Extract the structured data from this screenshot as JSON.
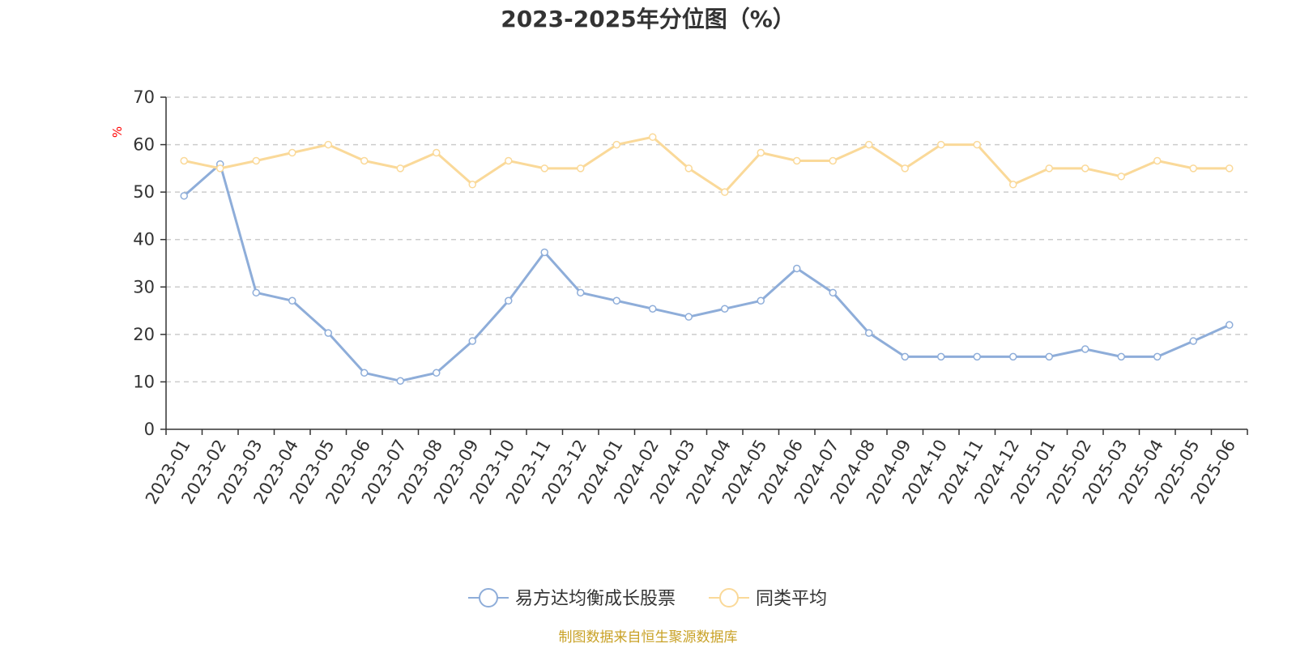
{
  "chart_data": {
    "type": "line",
    "title": "2023-2025年分位图（%）",
    "ylabel": "%",
    "xlabel": "",
    "ylim": [
      0,
      70
    ],
    "yticks": [
      0,
      10,
      20,
      30,
      40,
      50,
      60,
      70
    ],
    "grid": true,
    "legend_position": "bottom",
    "categories": [
      "2023-01",
      "2023-02",
      "2023-03",
      "2023-04",
      "2023-05",
      "2023-06",
      "2023-07",
      "2023-08",
      "2023-09",
      "2023-10",
      "2023-11",
      "2023-12",
      "2024-01",
      "2024-02",
      "2024-03",
      "2024-04",
      "2024-05",
      "2024-06",
      "2024-07",
      "2024-08",
      "2024-09",
      "2024-10",
      "2024-11",
      "2024-12",
      "2025-01",
      "2025-02",
      "2025-03",
      "2025-04",
      "2025-05",
      "2025-06"
    ],
    "series": [
      {
        "name": "易方达均衡成长股票",
        "color": "#8eadd9",
        "values": [
          49.2,
          55.9,
          28.8,
          27.1,
          20.3,
          11.9,
          10.2,
          11.9,
          18.6,
          27.1,
          37.3,
          28.8,
          27.1,
          25.4,
          23.7,
          25.4,
          27.1,
          33.9,
          28.8,
          20.3,
          15.3,
          15.3,
          15.3,
          15.3,
          15.3,
          16.9,
          15.3,
          15.3,
          18.6,
          22.0
        ]
      },
      {
        "name": "同类平均",
        "color": "#fad999",
        "values": [
          56.6,
          55.0,
          56.6,
          58.3,
          60.0,
          56.6,
          55.0,
          58.3,
          51.6,
          56.6,
          55.0,
          55.0,
          60.0,
          61.6,
          55.0,
          50.0,
          58.3,
          56.6,
          56.6,
          60.0,
          55.0,
          60.0,
          60.0,
          51.6,
          55.0,
          55.0,
          53.3,
          56.6,
          55.0,
          55.0
        ]
      }
    ]
  },
  "source_note": "制图数据来自恒生聚源数据库"
}
